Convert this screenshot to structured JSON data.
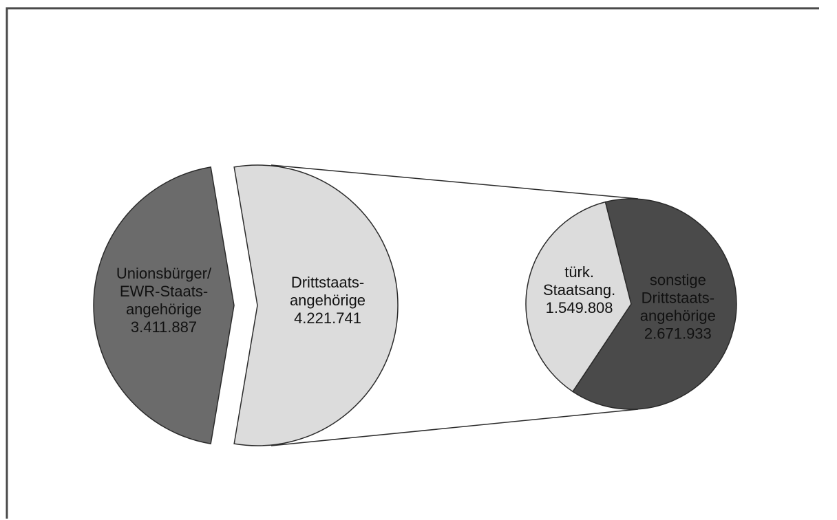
{
  "chart_data": {
    "type": "pie",
    "variant": "pie-of-pie",
    "title": "",
    "main_pie": {
      "slices": [
        {
          "label_lines": [
            "Unionsbürger/",
            "EWR-Staats-",
            "angehörige",
            "3.411.887"
          ],
          "value": 3411887,
          "color": "#6b6b6b",
          "exploded": false
        },
        {
          "label_lines": [
            "Drittstaats-",
            "angehörige",
            "4.221.741"
          ],
          "value": 4221741,
          "color": "#dcdcdc",
          "exploded": true
        }
      ]
    },
    "breakout_pie": {
      "parent": "Drittstaats-angehörige",
      "slices": [
        {
          "label_lines": [
            "türk.",
            "Staatsang.",
            "1.549.808"
          ],
          "value": 1549808,
          "color": "#dcdcdc"
        },
        {
          "label_lines": [
            "sonstige",
            "Drittstaats-",
            "angehörige",
            "2.671.933"
          ],
          "value": 2671933,
          "color": "#4a4a4a"
        }
      ]
    },
    "legend": "none",
    "grid": false
  }
}
